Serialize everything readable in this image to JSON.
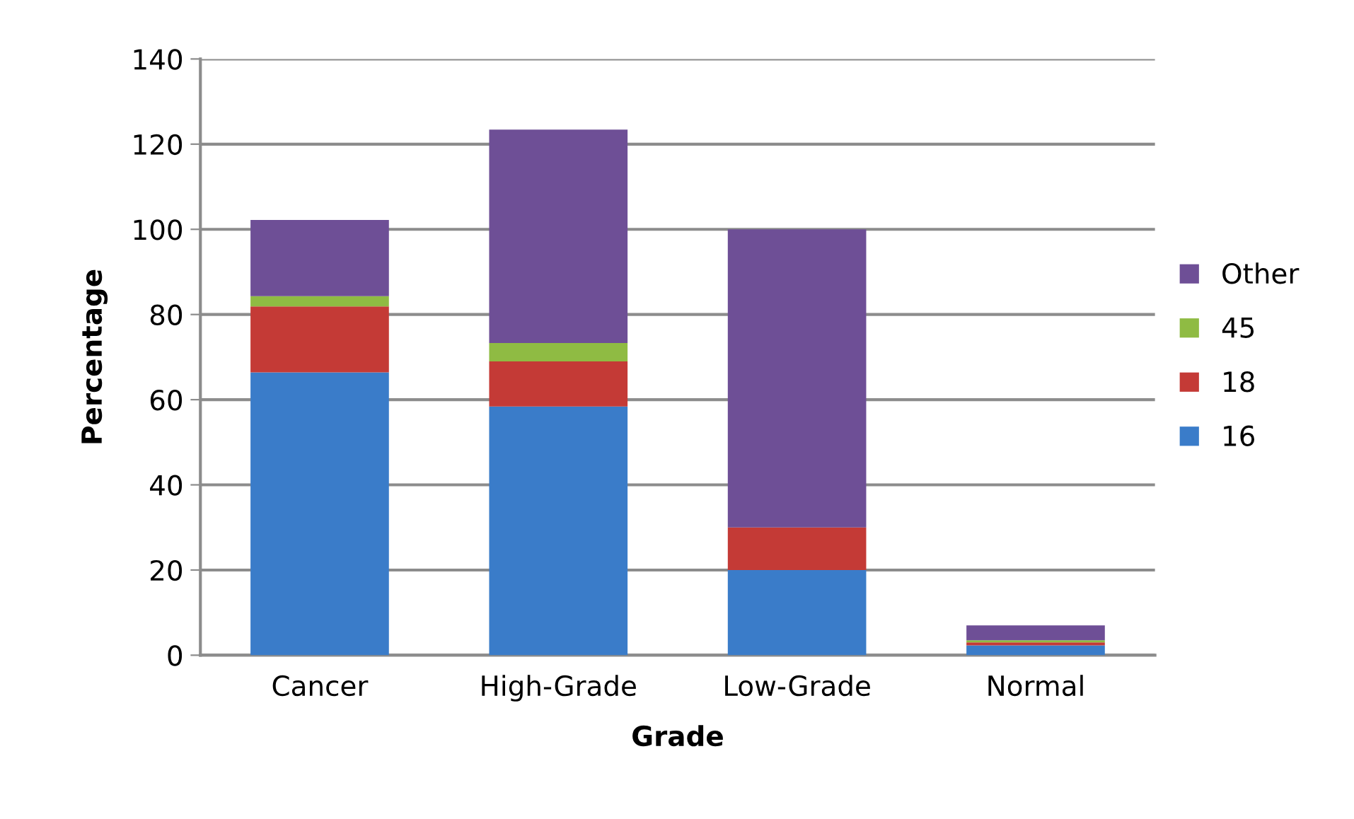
{
  "chart_data": {
    "type": "bar",
    "stacked": true,
    "xlabel": "Grade",
    "ylabel": "Percentage",
    "categories": [
      "Cancer",
      "High-Grade",
      "Low-Grade",
      "Normal"
    ],
    "series": [
      {
        "name": "16",
        "color": "#3a7cc9",
        "values": [
          66.4,
          58.4,
          20,
          2.3
        ]
      },
      {
        "name": "18",
        "color": "#c43a36",
        "values": [
          15.5,
          10.6,
          10,
          0.7
        ]
      },
      {
        "name": "45",
        "color": "#8fbb43",
        "values": [
          2.4,
          4.3,
          0,
          0.5
        ]
      },
      {
        "name": "Other",
        "color": "#6e4f96",
        "values": [
          17.9,
          50.1,
          70,
          3.5
        ]
      }
    ],
    "ylim": [
      0,
      140
    ],
    "yticks": [
      0,
      20,
      40,
      60,
      80,
      100,
      120,
      140
    ],
    "grid": "y",
    "legend": "right"
  }
}
